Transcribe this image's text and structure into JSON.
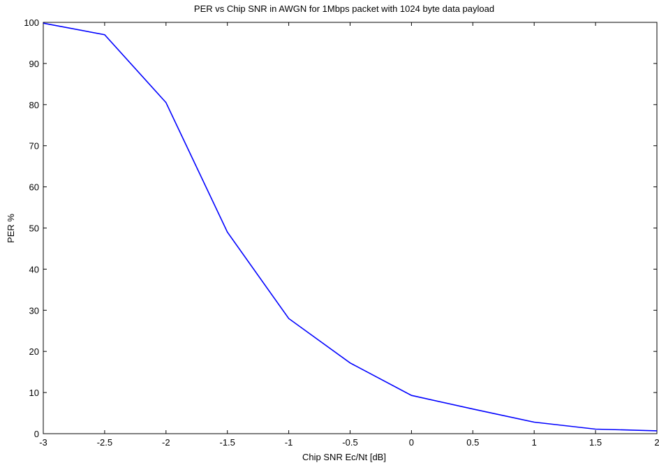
{
  "chart_data": {
    "type": "line",
    "title": "PER vs Chip SNR in AWGN for 1Mbps packet with 1024 byte data payload",
    "xlabel": "Chip SNR Ec/Nt [dB]",
    "ylabel": "PER %",
    "xlim": [
      -3,
      2
    ],
    "ylim": [
      0,
      100
    ],
    "xticks": [
      -3,
      -2.5,
      -2,
      -1.5,
      -1,
      -0.5,
      0,
      0.5,
      1,
      1.5,
      2
    ],
    "xtick_labels": [
      "-3",
      "-2.5",
      "-2",
      "-1.5",
      "-1",
      "-0.5",
      "0",
      "0.5",
      "1",
      "1.5",
      "2"
    ],
    "yticks": [
      0,
      10,
      20,
      30,
      40,
      50,
      60,
      70,
      80,
      90,
      100
    ],
    "ytick_labels": [
      "0",
      "10",
      "20",
      "30",
      "40",
      "50",
      "60",
      "70",
      "80",
      "90",
      "100"
    ],
    "grid": false,
    "series": [
      {
        "color": "#0000ff",
        "x": [
          -3,
          -2.5,
          -2,
          -1.5,
          -1,
          -0.5,
          0,
          0.5,
          1,
          1.5,
          2
        ],
        "y": [
          99.8,
          97.0,
          80.5,
          49.0,
          28.0,
          17.2,
          9.3,
          6.0,
          2.8,
          1.1,
          0.7
        ]
      }
    ]
  }
}
